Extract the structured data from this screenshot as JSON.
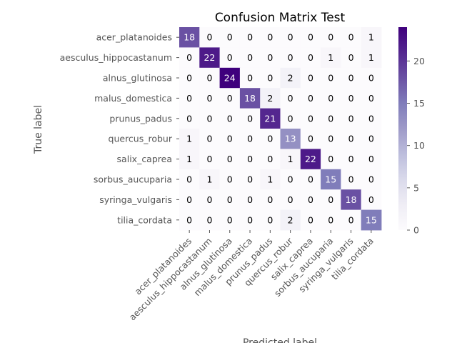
{
  "chart_data": {
    "type": "heatmap",
    "title": "Confusion Matrix Test",
    "xlabel": "Predicted label",
    "ylabel": "True label",
    "labels": [
      "acer_platanoides",
      "aesculus_hippocastanum",
      "alnus_glutinosa",
      "malus_domestica",
      "prunus_padus",
      "quercus_robur",
      "salix_caprea",
      "sorbus_aucuparia",
      "syringa_vulgaris",
      "tilia_cordata"
    ],
    "matrix": [
      [
        18,
        0,
        0,
        0,
        0,
        0,
        0,
        0,
        0,
        1
      ],
      [
        0,
        22,
        0,
        0,
        0,
        0,
        0,
        1,
        0,
        1
      ],
      [
        0,
        0,
        24,
        0,
        0,
        2,
        0,
        0,
        0,
        0
      ],
      [
        0,
        0,
        0,
        18,
        2,
        0,
        0,
        0,
        0,
        0
      ],
      [
        0,
        0,
        0,
        0,
        21,
        0,
        0,
        0,
        0,
        0
      ],
      [
        1,
        0,
        0,
        0,
        0,
        13,
        0,
        0,
        0,
        0
      ],
      [
        1,
        0,
        0,
        0,
        0,
        1,
        22,
        0,
        0,
        0
      ],
      [
        0,
        1,
        0,
        0,
        1,
        0,
        0,
        15,
        0,
        0
      ],
      [
        0,
        0,
        0,
        0,
        0,
        0,
        0,
        0,
        18,
        0
      ],
      [
        0,
        0,
        0,
        0,
        0,
        2,
        0,
        0,
        0,
        15
      ]
    ],
    "colormap": "Purples",
    "colorbar": {
      "range": [
        0,
        24
      ],
      "ticks": [
        0,
        5,
        10,
        15,
        20
      ]
    },
    "colors": {
      "low": "#fcfbfd",
      "high": "#3f007d",
      "text_light": "#ffffff",
      "text_dark": "#000000",
      "axis_text": "#555555"
    },
    "grid": true
  }
}
